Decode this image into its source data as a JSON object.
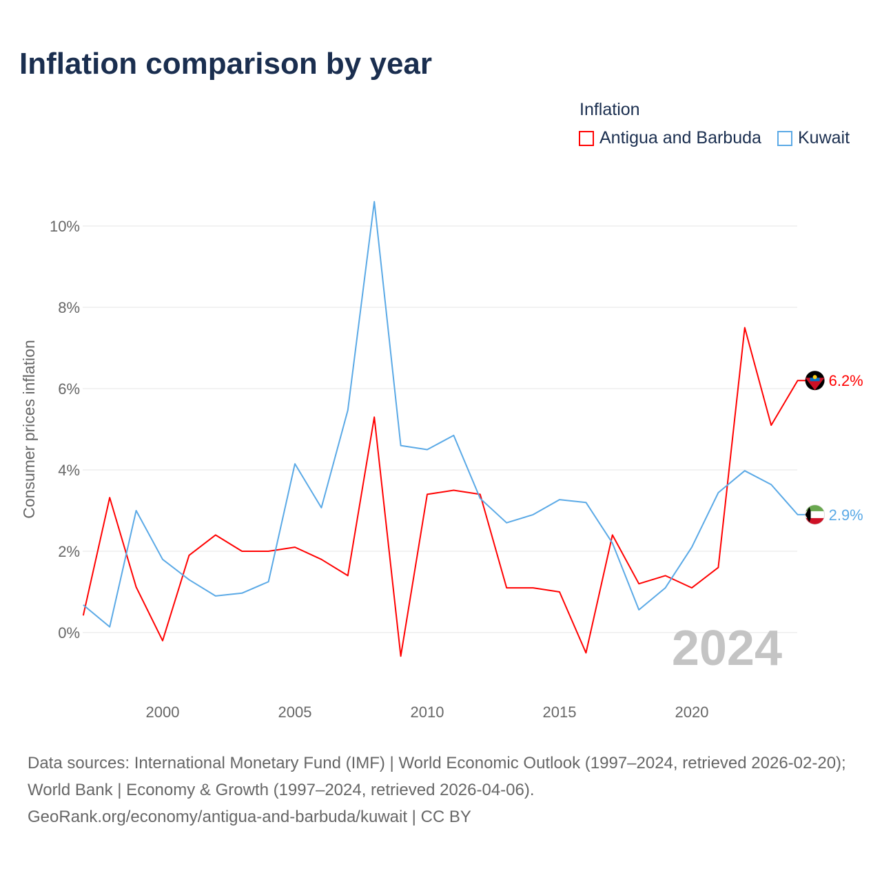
{
  "title": "Inflation comparison by year",
  "legend": {
    "title": "Inflation",
    "items": [
      {
        "label": "Antigua and Barbuda",
        "color": "#ff0000"
      },
      {
        "label": "Kuwait",
        "color": "#5aa9e6"
      }
    ]
  },
  "source": {
    "line1": "Data sources: International Monetary Fund (IMF) | World Economic Outlook (1997–2024, retrieved 2026-02-20); World Bank | Economy & Growth (1997–2024, retrieved 2026-04-06).",
    "line2": "GeoRank.org/economy/antigua-and-barbuda/kuwait | CC BY"
  },
  "chart_data": {
    "type": "line",
    "title": "Inflation comparison by year",
    "ylabel": "Consumer prices inflation",
    "xlabel": "",
    "year_watermark": "2024",
    "xlim": [
      1997,
      2024
    ],
    "ylim": [
      -1.5,
      11
    ],
    "xticks": [
      2000,
      2005,
      2010,
      2015,
      2020
    ],
    "yticks": [
      0,
      2,
      4,
      6,
      8,
      10
    ],
    "ytick_labels": [
      "0%",
      "2%",
      "4%",
      "6%",
      "8%",
      "10%"
    ],
    "x": [
      1997,
      1998,
      1999,
      2000,
      2001,
      2002,
      2003,
      2004,
      2005,
      2006,
      2007,
      2008,
      2009,
      2010,
      2011,
      2012,
      2013,
      2014,
      2015,
      2016,
      2017,
      2018,
      2019,
      2020,
      2021,
      2022,
      2023,
      2024
    ],
    "series": [
      {
        "name": "Antigua and Barbuda",
        "color": "#ff0000",
        "end_label": "6.2%",
        "values": [
          0.42,
          3.32,
          1.12,
          -0.2,
          1.9,
          2.4,
          2.0,
          2.0,
          2.1,
          1.8,
          1.4,
          5.3,
          -0.58,
          3.4,
          3.5,
          3.4,
          1.1,
          1.1,
          1.0,
          -0.5,
          2.4,
          1.2,
          1.4,
          1.1,
          1.6,
          7.5,
          5.1,
          6.2
        ]
      },
      {
        "name": "Kuwait",
        "color": "#5aa9e6",
        "end_label": "2.9%",
        "values": [
          0.68,
          0.14,
          3.0,
          1.8,
          1.3,
          0.9,
          0.97,
          1.25,
          4.15,
          3.07,
          5.47,
          10.6,
          4.6,
          4.5,
          4.85,
          3.3,
          2.7,
          2.9,
          3.27,
          3.2,
          2.2,
          0.56,
          1.1,
          2.1,
          3.44,
          3.98,
          3.64,
          2.9
        ]
      }
    ],
    "grid": true,
    "legend_position": "top-right"
  }
}
